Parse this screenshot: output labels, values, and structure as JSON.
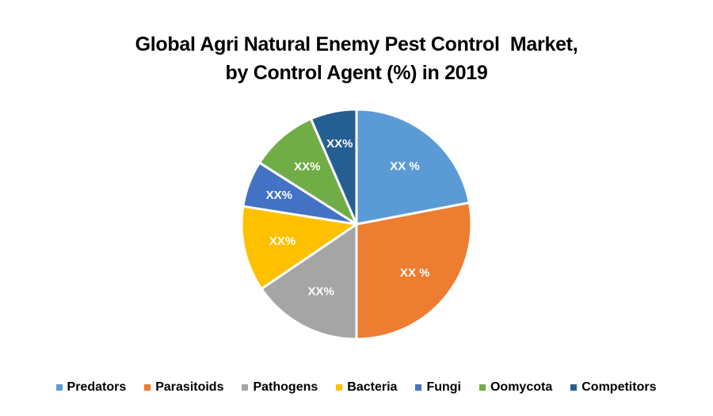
{
  "chart_data": {
    "type": "pie",
    "title": "Global Agri Natural Enemy Pest Control  Market, by Control Agent (%) in 2019",
    "title_lines": [
      "Global Agri Natural Enemy Pest Control  Market,",
      "by Control Agent (%) in 2019"
    ],
    "categories": [
      "Predators",
      "Parasitoids",
      "Pathogens",
      "Bacteria",
      "Fungi",
      "Oomycota",
      "Competitors"
    ],
    "values": [
      22,
      28,
      15.5,
      12,
      6.5,
      9.5,
      6.5
    ],
    "data_labels": [
      "XX %",
      "XX %",
      "XX%",
      "XX%",
      "XX%",
      "XX%",
      "XX%"
    ],
    "colors": [
      "#5B9BD5",
      "#ED7D31",
      "#A5A5A5",
      "#FFC000",
      "#4472C4",
      "#70AD47",
      "#255E91"
    ],
    "start_angle_deg": 0,
    "direction": "clockwise",
    "legend_position": "bottom",
    "values_note": "Estimated from slice angles; actual labels are masked as XX%"
  },
  "legend": {
    "items": [
      {
        "label": "Predators",
        "color": "#5B9BD5"
      },
      {
        "label": "Parasitoids",
        "color": "#ED7D31"
      },
      {
        "label": "Pathogens",
        "color": "#A5A5A5"
      },
      {
        "label": "Bacteria",
        "color": "#FFC000"
      },
      {
        "label": "Fungi",
        "color": "#4472C4"
      },
      {
        "label": "Oomycota",
        "color": "#70AD47"
      },
      {
        "label": "Competitors",
        "color": "#255E91"
      }
    ]
  }
}
